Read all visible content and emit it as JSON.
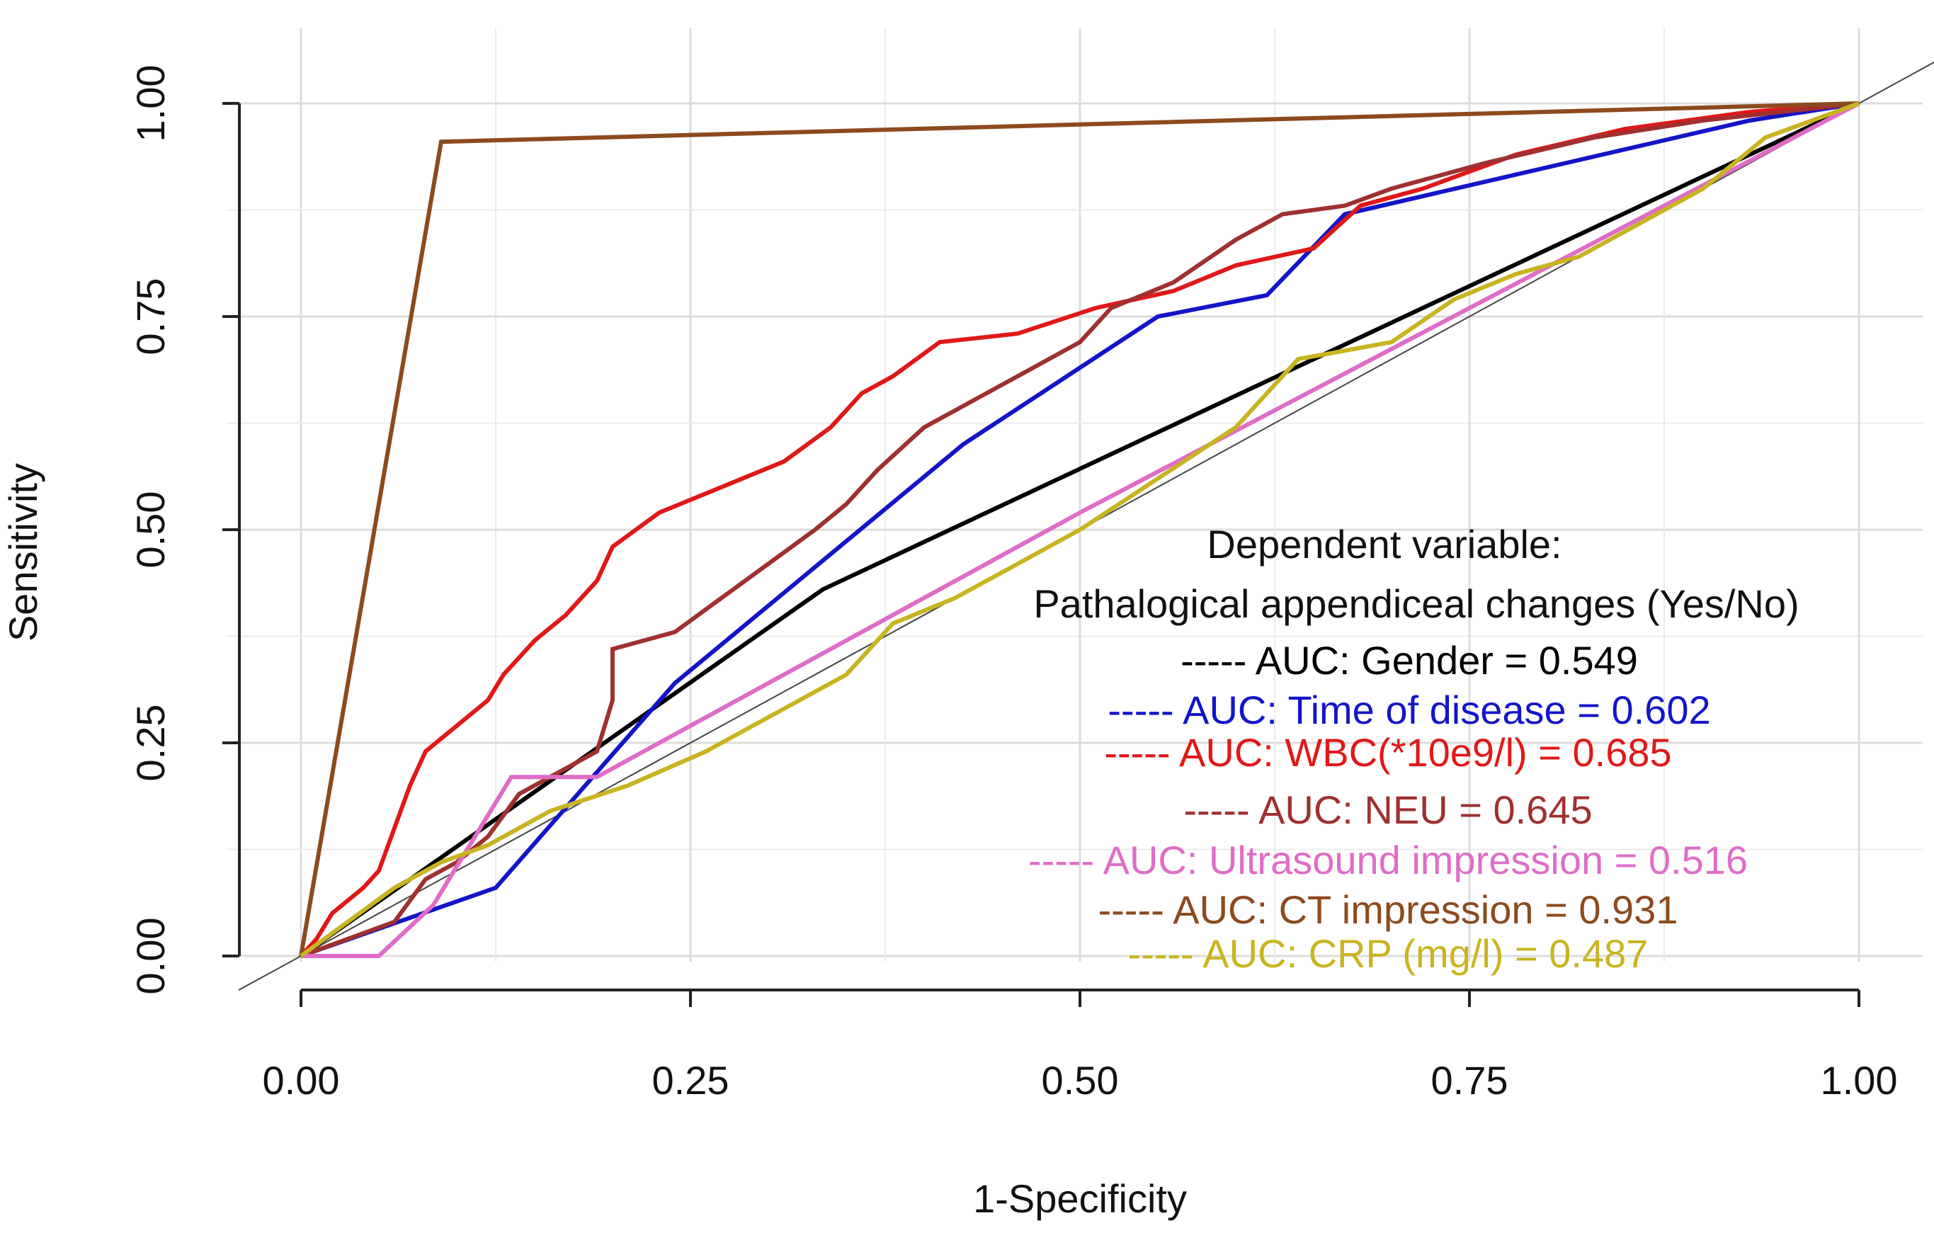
{
  "chart_data": {
    "type": "line",
    "xlabel": "1-Specificity",
    "ylabel": "Sensitivity",
    "xlim": [
      0,
      1
    ],
    "ylim": [
      0,
      1
    ],
    "grid": true,
    "xticks": [
      "0.00",
      "0.25",
      "0.50",
      "0.75",
      "1.00"
    ],
    "yticks": [
      "0.00",
      "0.25",
      "0.50",
      "0.75",
      "1.00"
    ],
    "legend_title": [
      "Dependent variable:",
      "Pathalogical appendiceal changes (Yes/No)"
    ],
    "legend_position": "bottom-right",
    "reference_line": {
      "name": "diagonal",
      "color": "#444444",
      "points": [
        [
          -0.04,
          -0.04
        ],
        [
          1.05,
          1.05
        ]
      ]
    },
    "series": [
      {
        "name": "Gender",
        "label": "----- AUC: Gender = 0.549",
        "auc": 0.549,
        "color": "#000000",
        "points": [
          [
            0,
            0
          ],
          [
            0.335,
            0.43
          ],
          [
            1,
            1
          ]
        ]
      },
      {
        "name": "Time of disease",
        "label": "----- AUC: Time of disease = 0.602",
        "auc": 0.602,
        "color": "#1414c8",
        "points": [
          [
            0,
            0
          ],
          [
            0.125,
            0.08
          ],
          [
            0.24,
            0.32
          ],
          [
            0.425,
            0.6
          ],
          [
            0.55,
            0.75
          ],
          [
            0.62,
            0.775
          ],
          [
            0.67,
            0.87
          ],
          [
            0.93,
            0.98
          ],
          [
            1,
            1
          ]
        ]
      },
      {
        "name": "WBC(*10e9/l)",
        "label": "----- AUC: WBC(*10e9/l) = 0.685",
        "auc": 0.685,
        "color": "#e01818",
        "points": [
          [
            0,
            0
          ],
          [
            0.01,
            0.02
          ],
          [
            0.02,
            0.05
          ],
          [
            0.04,
            0.08
          ],
          [
            0.05,
            0.1
          ],
          [
            0.06,
            0.15
          ],
          [
            0.07,
            0.2
          ],
          [
            0.08,
            0.24
          ],
          [
            0.1,
            0.27
          ],
          [
            0.12,
            0.3
          ],
          [
            0.13,
            0.33
          ],
          [
            0.15,
            0.37
          ],
          [
            0.17,
            0.4
          ],
          [
            0.19,
            0.44
          ],
          [
            0.2,
            0.48
          ],
          [
            0.23,
            0.52
          ],
          [
            0.27,
            0.55
          ],
          [
            0.31,
            0.58
          ],
          [
            0.34,
            0.62
          ],
          [
            0.36,
            0.66
          ],
          [
            0.38,
            0.68
          ],
          [
            0.41,
            0.72
          ],
          [
            0.46,
            0.73
          ],
          [
            0.51,
            0.76
          ],
          [
            0.56,
            0.78
          ],
          [
            0.6,
            0.81
          ],
          [
            0.65,
            0.83
          ],
          [
            0.68,
            0.88
          ],
          [
            0.72,
            0.9
          ],
          [
            0.78,
            0.94
          ],
          [
            0.85,
            0.97
          ],
          [
            0.93,
            0.99
          ],
          [
            1,
            1
          ]
        ]
      },
      {
        "name": "NEU",
        "label": "----- AUC: NEU = 0.645",
        "auc": 0.645,
        "color": "#a03030",
        "points": [
          [
            0,
            0
          ],
          [
            0.03,
            0.02
          ],
          [
            0.06,
            0.04
          ],
          [
            0.08,
            0.09
          ],
          [
            0.1,
            0.11
          ],
          [
            0.12,
            0.14
          ],
          [
            0.14,
            0.19
          ],
          [
            0.17,
            0.22
          ],
          [
            0.19,
            0.24
          ],
          [
            0.2,
            0.3
          ],
          [
            0.2,
            0.36
          ],
          [
            0.24,
            0.38
          ],
          [
            0.27,
            0.42
          ],
          [
            0.3,
            0.46
          ],
          [
            0.33,
            0.5
          ],
          [
            0.35,
            0.53
          ],
          [
            0.37,
            0.57
          ],
          [
            0.4,
            0.62
          ],
          [
            0.43,
            0.65
          ],
          [
            0.47,
            0.69
          ],
          [
            0.5,
            0.72
          ],
          [
            0.52,
            0.76
          ],
          [
            0.56,
            0.79
          ],
          [
            0.6,
            0.84
          ],
          [
            0.63,
            0.87
          ],
          [
            0.67,
            0.88
          ],
          [
            0.7,
            0.9
          ],
          [
            0.76,
            0.93
          ],
          [
            0.83,
            0.96
          ],
          [
            0.9,
            0.98
          ],
          [
            1,
            1
          ]
        ]
      },
      {
        "name": "Ultrasound impression",
        "label": "----- AUC: Ultrasound impression = 0.516",
        "auc": 0.516,
        "color": "#e06cc8",
        "points": [
          [
            0,
            0
          ],
          [
            0.05,
            0
          ],
          [
            0.085,
            0.06
          ],
          [
            0.135,
            0.21
          ],
          [
            0.19,
            0.21
          ],
          [
            0.25,
            0.27
          ],
          [
            0.5,
            0.52
          ],
          [
            0.75,
            0.76
          ],
          [
            1,
            1
          ]
        ]
      },
      {
        "name": "CT impression",
        "label": "----- AUC: CT impression = 0.931",
        "auc": 0.931,
        "color": "#8c4a1e",
        "points": [
          [
            0,
            0
          ],
          [
            0.09,
            0.955
          ],
          [
            1,
            1
          ]
        ]
      },
      {
        "name": "CRP (mg/l)",
        "label": "----- AUC: CRP (mg/l) = 0.487",
        "auc": 0.487,
        "color": "#c8b420",
        "points": [
          [
            0,
            0
          ],
          [
            0.03,
            0.04
          ],
          [
            0.06,
            0.08
          ],
          [
            0.09,
            0.11
          ],
          [
            0.12,
            0.13
          ],
          [
            0.16,
            0.17
          ],
          [
            0.21,
            0.2
          ],
          [
            0.26,
            0.24
          ],
          [
            0.3,
            0.28
          ],
          [
            0.35,
            0.33
          ],
          [
            0.38,
            0.39
          ],
          [
            0.42,
            0.42
          ],
          [
            0.46,
            0.46
          ],
          [
            0.5,
            0.5
          ],
          [
            0.55,
            0.56
          ],
          [
            0.6,
            0.62
          ],
          [
            0.64,
            0.7
          ],
          [
            0.7,
            0.72
          ],
          [
            0.74,
            0.77
          ],
          [
            0.78,
            0.8
          ],
          [
            0.82,
            0.82
          ],
          [
            0.86,
            0.86
          ],
          [
            0.9,
            0.9
          ],
          [
            0.94,
            0.96
          ],
          [
            0.97,
            0.98
          ],
          [
            1,
            1
          ]
        ]
      }
    ]
  }
}
